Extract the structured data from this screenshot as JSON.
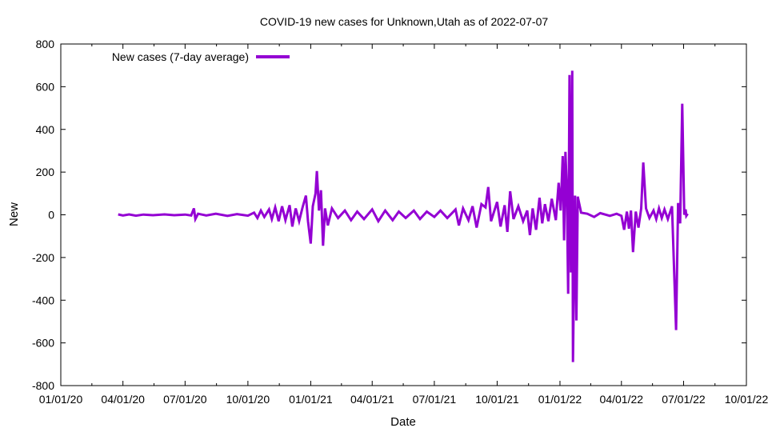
{
  "chart_data": {
    "type": "line",
    "title": "COVID-19 new cases for Unknown,Utah as of 2022-07-07",
    "xlabel": "Date",
    "ylabel": "New",
    "ylim": [
      -800,
      800
    ],
    "yticks": [
      -800,
      -600,
      -400,
      -200,
      0,
      200,
      400,
      600,
      800
    ],
    "xlim": [
      "2020-01-01",
      "2022-10-01"
    ],
    "xticks": [
      {
        "date": "2020-01-01",
        "label": "01/01/20"
      },
      {
        "date": "2020-04-01",
        "label": "04/01/20"
      },
      {
        "date": "2020-07-01",
        "label": "07/01/20"
      },
      {
        "date": "2020-10-01",
        "label": "10/01/20"
      },
      {
        "date": "2021-01-01",
        "label": "01/01/21"
      },
      {
        "date": "2021-04-01",
        "label": "04/01/21"
      },
      {
        "date": "2021-07-01",
        "label": "07/01/21"
      },
      {
        "date": "2021-10-01",
        "label": "10/01/21"
      },
      {
        "date": "2022-01-01",
        "label": "01/01/22"
      },
      {
        "date": "2022-04-01",
        "label": "04/01/22"
      },
      {
        "date": "2022-07-01",
        "label": "07/01/22"
      },
      {
        "date": "2022-10-01",
        "label": "10/01/22"
      }
    ],
    "grid": false,
    "legend_position": "top-left",
    "series": [
      {
        "name": "New cases (7-day average)",
        "color": "#9400d3",
        "points": [
          [
            "2020-03-25",
            2
          ],
          [
            "2020-04-01",
            -3
          ],
          [
            "2020-04-10",
            2
          ],
          [
            "2020-04-20",
            -4
          ],
          [
            "2020-05-01",
            1
          ],
          [
            "2020-05-15",
            -2
          ],
          [
            "2020-06-01",
            2
          ],
          [
            "2020-06-15",
            -2
          ],
          [
            "2020-07-01",
            1
          ],
          [
            "2020-07-10",
            -3
          ],
          [
            "2020-07-14",
            30
          ],
          [
            "2020-07-16",
            -20
          ],
          [
            "2020-07-20",
            5
          ],
          [
            "2020-08-01",
            -3
          ],
          [
            "2020-08-15",
            5
          ],
          [
            "2020-09-01",
            -5
          ],
          [
            "2020-09-15",
            3
          ],
          [
            "2020-10-01",
            -4
          ],
          [
            "2020-10-10",
            10
          ],
          [
            "2020-10-15",
            -15
          ],
          [
            "2020-10-20",
            20
          ],
          [
            "2020-10-25",
            -10
          ],
          [
            "2020-11-01",
            25
          ],
          [
            "2020-11-05",
            -20
          ],
          [
            "2020-11-10",
            35
          ],
          [
            "2020-11-15",
            -30
          ],
          [
            "2020-11-20",
            40
          ],
          [
            "2020-11-25",
            -25
          ],
          [
            "2020-12-01",
            45
          ],
          [
            "2020-12-05",
            -55
          ],
          [
            "2020-12-10",
            30
          ],
          [
            "2020-12-15",
            -30
          ],
          [
            "2020-12-20",
            35
          ],
          [
            "2020-12-25",
            90
          ],
          [
            "2020-12-28",
            -30
          ],
          [
            "2021-01-01",
            -135
          ],
          [
            "2021-01-04",
            40
          ],
          [
            "2021-01-08",
            100
          ],
          [
            "2021-01-10",
            205
          ],
          [
            "2021-01-13",
            20
          ],
          [
            "2021-01-16",
            115
          ],
          [
            "2021-01-19",
            -145
          ],
          [
            "2021-01-22",
            30
          ],
          [
            "2021-01-26",
            -50
          ],
          [
            "2021-02-01",
            30
          ],
          [
            "2021-02-10",
            -15
          ],
          [
            "2021-02-20",
            20
          ],
          [
            "2021-03-01",
            -25
          ],
          [
            "2021-03-10",
            15
          ],
          [
            "2021-03-20",
            -20
          ],
          [
            "2021-04-01",
            25
          ],
          [
            "2021-04-10",
            -30
          ],
          [
            "2021-04-20",
            20
          ],
          [
            "2021-05-01",
            -25
          ],
          [
            "2021-05-10",
            15
          ],
          [
            "2021-05-20",
            -15
          ],
          [
            "2021-06-01",
            20
          ],
          [
            "2021-06-10",
            -20
          ],
          [
            "2021-06-20",
            15
          ],
          [
            "2021-07-01",
            -10
          ],
          [
            "2021-07-10",
            20
          ],
          [
            "2021-07-20",
            -15
          ],
          [
            "2021-08-01",
            25
          ],
          [
            "2021-08-06",
            -50
          ],
          [
            "2021-08-12",
            30
          ],
          [
            "2021-08-20",
            -25
          ],
          [
            "2021-08-26",
            40
          ],
          [
            "2021-09-01",
            -60
          ],
          [
            "2021-09-08",
            50
          ],
          [
            "2021-09-14",
            35
          ],
          [
            "2021-09-18",
            130
          ],
          [
            "2021-09-22",
            -30
          ],
          [
            "2021-10-01",
            60
          ],
          [
            "2021-10-06",
            -55
          ],
          [
            "2021-10-12",
            45
          ],
          [
            "2021-10-16",
            -80
          ],
          [
            "2021-10-20",
            110
          ],
          [
            "2021-10-25",
            -20
          ],
          [
            "2021-11-01",
            40
          ],
          [
            "2021-11-08",
            -30
          ],
          [
            "2021-11-14",
            20
          ],
          [
            "2021-11-18",
            -95
          ],
          [
            "2021-11-22",
            30
          ],
          [
            "2021-11-27",
            -70
          ],
          [
            "2021-12-02",
            80
          ],
          [
            "2021-12-06",
            -40
          ],
          [
            "2021-12-10",
            50
          ],
          [
            "2021-12-15",
            -30
          ],
          [
            "2021-12-20",
            75
          ],
          [
            "2021-12-26",
            -25
          ],
          [
            "2021-12-30",
            150
          ],
          [
            "2022-01-02",
            20
          ],
          [
            "2022-01-05",
            275
          ],
          [
            "2022-01-07",
            -120
          ],
          [
            "2022-01-09",
            295
          ],
          [
            "2022-01-11",
            120
          ],
          [
            "2022-01-13",
            -370
          ],
          [
            "2022-01-15",
            655
          ],
          [
            "2022-01-17",
            -270
          ],
          [
            "2022-01-19",
            675
          ],
          [
            "2022-01-20",
            -690
          ],
          [
            "2022-01-23",
            90
          ],
          [
            "2022-01-25",
            -495
          ],
          [
            "2022-01-27",
            85
          ],
          [
            "2022-02-01",
            10
          ],
          [
            "2022-02-10",
            5
          ],
          [
            "2022-02-20",
            -10
          ],
          [
            "2022-03-01",
            8
          ],
          [
            "2022-03-15",
            -5
          ],
          [
            "2022-03-25",
            5
          ],
          [
            "2022-04-01",
            -5
          ],
          [
            "2022-04-05",
            -70
          ],
          [
            "2022-04-09",
            15
          ],
          [
            "2022-04-12",
            -65
          ],
          [
            "2022-04-15",
            20
          ],
          [
            "2022-04-18",
            -175
          ],
          [
            "2022-04-22",
            15
          ],
          [
            "2022-04-26",
            -60
          ],
          [
            "2022-04-30",
            30
          ],
          [
            "2022-05-03",
            245
          ],
          [
            "2022-05-07",
            30
          ],
          [
            "2022-05-12",
            -15
          ],
          [
            "2022-05-18",
            20
          ],
          [
            "2022-05-22",
            -20
          ],
          [
            "2022-05-26",
            30
          ],
          [
            "2022-05-30",
            -15
          ],
          [
            "2022-06-03",
            25
          ],
          [
            "2022-06-08",
            -20
          ],
          [
            "2022-06-14",
            40
          ],
          [
            "2022-06-20",
            -540
          ],
          [
            "2022-06-23",
            55
          ],
          [
            "2022-06-26",
            -40
          ],
          [
            "2022-06-29",
            520
          ],
          [
            "2022-07-02",
            0
          ],
          [
            "2022-07-04",
            25
          ],
          [
            "2022-07-05",
            -5
          ],
          [
            "2022-07-07",
            5
          ]
        ]
      }
    ]
  }
}
